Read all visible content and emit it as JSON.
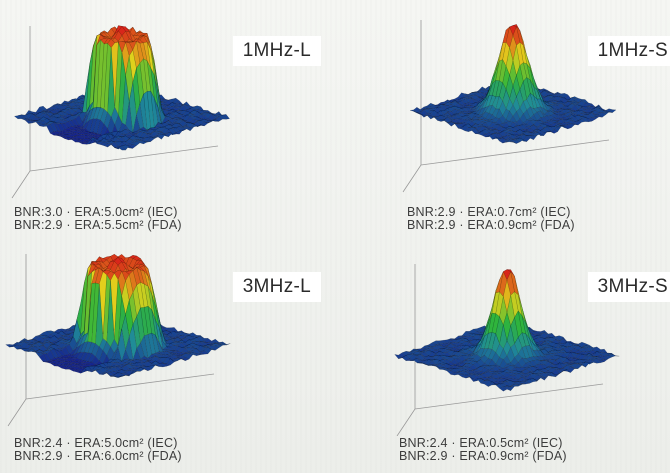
{
  "panels": [
    {
      "label": "1MHz-L",
      "shape": "wide",
      "lines": [
        "BNR:3.0 · ERA:5.0cm² (IEC)",
        "BNR:2.9 · ERA:5.5cm² (FDA)"
      ]
    },
    {
      "label": "1MHz-S",
      "shape": "narrow",
      "lines": [
        "BNR:2.9 · ERA:0.7cm² (IEC)",
        "BNR:2.9 · ERA:0.9cm² (FDA)"
      ]
    },
    {
      "label": "3MHz-L",
      "shape": "wide",
      "lines": [
        "BNR:2.4 · ERA:5.0cm² (IEC)",
        "BNR:2.9 · ERA:6.0cm² (FDA)"
      ]
    },
    {
      "label": "3MHz-S",
      "shape": "narrow",
      "lines": [
        "BNR:2.4 · ERA:0.5cm² (IEC)",
        "BNR:2.9 · ERA:0.9cm² (FDA)"
      ]
    }
  ],
  "colors": {
    "low": "#14168c",
    "mid_low": "#1f8a9a",
    "mid": "#2fb53a",
    "mid_high": "#e3d21c",
    "high": "#d8261a",
    "badge_bg": "#ffffff",
    "caption_text": "#3c3c3c"
  }
}
